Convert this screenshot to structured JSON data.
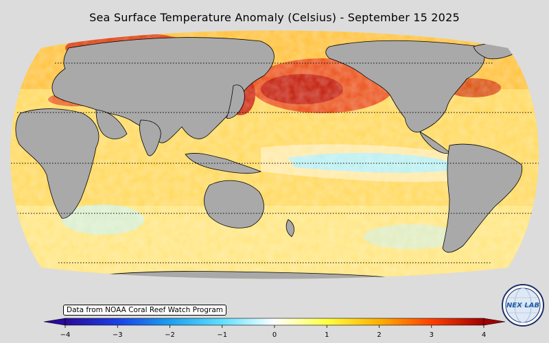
{
  "title": "Sea Surface Temperature Anomaly (Celsius) - September 15 2025",
  "credit": "Data from NOAA Coral Reef Watch Program",
  "logo": {
    "text": "NEX LAB",
    "icon": "nexlab-globe-logo"
  },
  "colorbar": {
    "ticks": [
      "−4",
      "−3",
      "−2",
      "−1",
      "0",
      "1",
      "2",
      "3",
      "4"
    ],
    "tick_values": [
      -4,
      -3,
      -2,
      -1,
      0,
      1,
      2,
      3,
      4
    ],
    "range": [
      -4,
      4
    ],
    "colors": [
      "#2a0a9a",
      "#1a40e8",
      "#1aa0f0",
      "#5fe0ff",
      "#ffffff",
      "#ffff40",
      "#ffb000",
      "#ff4000",
      "#a00000"
    ]
  },
  "map": {
    "projection": "Robinson (Pacific-centered)",
    "land_color": "#a9a9a9",
    "ocean_background": "#ffd060",
    "gridlines": "dotted latitude lines"
  }
}
